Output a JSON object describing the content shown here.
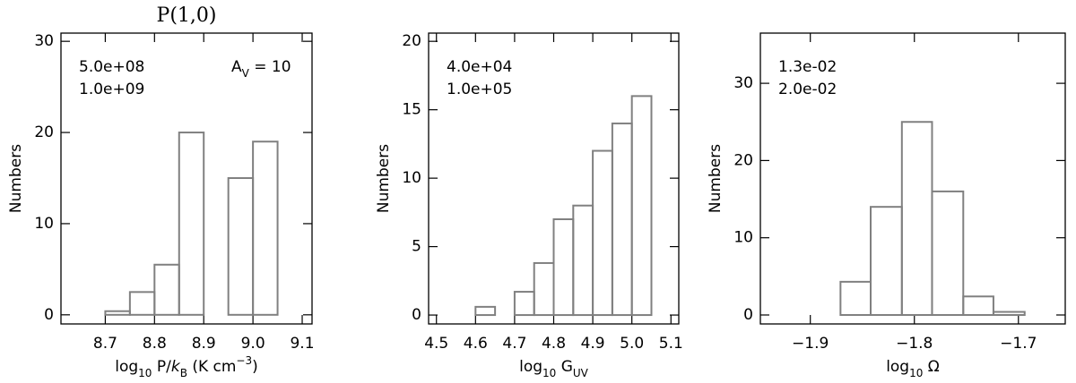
{
  "chart_data": [
    {
      "type": "histogram",
      "title": "P(1,0)",
      "color": "#808080",
      "bins": [
        8.65,
        8.7,
        8.75,
        8.8,
        8.85,
        8.9,
        8.95,
        9.0,
        9.05
      ],
      "values": [
        0,
        0.4,
        2.5,
        5.5,
        20,
        0,
        15,
        19
      ],
      "xlim": [
        8.61,
        9.12
      ],
      "ylim": [
        -1,
        30.9
      ],
      "xticks": [
        8.7,
        8.8,
        8.9,
        {
          "value": 9.0,
          "label": "9.0"
        },
        9.1
      ],
      "yticks": [
        0,
        10,
        20,
        30
      ],
      "ylabel": "Numbers",
      "xlabel": [
        {
          "text": "log"
        },
        {
          "text": "10",
          "baseline": "sub"
        },
        {
          "text": " P/"
        },
        {
          "text": "k",
          "style": "italic"
        },
        {
          "text": "B",
          "baseline": "sub"
        },
        {
          "text": " (K cm"
        },
        {
          "text": "−3",
          "baseline": "super"
        },
        {
          "text": ")"
        }
      ],
      "annotations": [
        "5.0e+08",
        "1.0e+09"
      ],
      "extinction_label": [
        {
          "text": "A"
        },
        {
          "text": "V",
          "baseline": "sub"
        },
        {
          "text": " = 10"
        }
      ]
    },
    {
      "type": "histogram",
      "color": "#808080",
      "bins": [
        4.55,
        4.6,
        4.65,
        4.7,
        4.75,
        4.8,
        4.85,
        4.9,
        4.95,
        5.0,
        5.05
      ],
      "values": [
        0,
        0.6,
        0,
        1.7,
        3.8,
        7,
        8,
        12,
        14,
        16
      ],
      "xlim": [
        4.48,
        5.12
      ],
      "ylim": [
        -0.65,
        20.6
      ],
      "xticks": [
        4.5,
        4.6,
        4.7,
        4.8,
        4.9,
        {
          "value": 5.0,
          "label": "5.0"
        },
        5.1
      ],
      "yticks": [
        0,
        5,
        10,
        15,
        20
      ],
      "ylabel": "Numbers",
      "xlabel": [
        {
          "text": "log"
        },
        {
          "text": "10",
          "baseline": "sub"
        },
        {
          "text": " G"
        },
        {
          "text": "UV",
          "baseline": "sub"
        }
      ],
      "annotations": [
        "4.0e+04",
        "1.0e+05"
      ]
    },
    {
      "type": "histogram",
      "color": "#808080",
      "bins": [
        -1.871,
        -1.842,
        -1.812,
        -1.783,
        -1.753,
        -1.724,
        -1.694
      ],
      "values": [
        4.3,
        14,
        25,
        16,
        2.4,
        0.4
      ],
      "xlim": [
        -1.948,
        -1.655
      ],
      "ylim": [
        -1.16,
        36.5
      ],
      "xticks": [
        {
          "value": -1.9,
          "label": "−1.9"
        },
        {
          "value": -1.8,
          "label": "−1.8"
        },
        {
          "value": -1.7,
          "label": "−1.7"
        }
      ],
      "yticks": [
        0,
        10,
        20,
        30
      ],
      "ylabel": "Numbers",
      "xlabel": [
        {
          "text": "log"
        },
        {
          "text": "10",
          "baseline": "sub"
        },
        {
          "text": " Ω"
        }
      ],
      "annotations": [
        "1.3e-02",
        "2.0e-02"
      ]
    }
  ]
}
